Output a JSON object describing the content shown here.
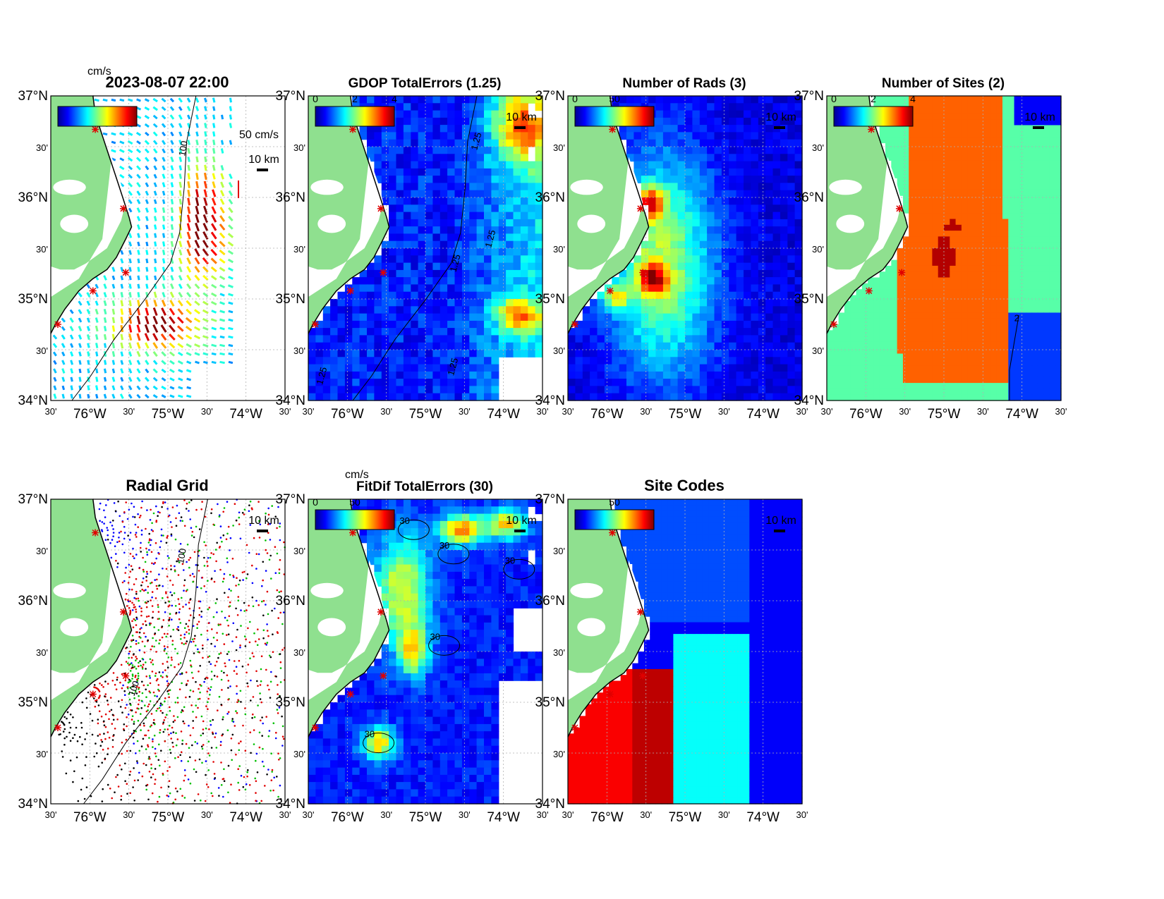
{
  "figure": {
    "timestamp": "2023-08-07 22:00",
    "colors": {
      "land": "#8fe08f",
      "coast": "#000000",
      "site_marker": "#e00000",
      "axis": "#000000",
      "grid": "#b0b0b0"
    }
  },
  "chart_data": [
    {
      "id": "currents",
      "type": "heatmap",
      "title": "2023-08-07 22:00",
      "colorbar": {
        "label": "cm/s",
        "ticks": []
      },
      "scale_label": "50 cm/s",
      "distance_label": "10 km",
      "contour_label": "100",
      "ylabel_ticks": [
        "37°N",
        "30'",
        "36°N",
        "30'",
        "35°N",
        "30'",
        "34°N"
      ],
      "xlabel_ticks": [
        "30'",
        "76°W",
        "30'",
        "75°W",
        "30'",
        "74°W",
        "30'"
      ],
      "lat_range": [
        34,
        37
      ],
      "lon_range": [
        -76.5,
        -74
      ]
    },
    {
      "id": "gdop",
      "type": "heatmap",
      "title": "GDOP TotalErrors (1.25)",
      "colorbar": {
        "label": "",
        "ticks": [
          "0",
          "2",
          "4"
        ],
        "range": [
          0,
          4
        ]
      },
      "distance_label": "10 km",
      "contour_level": 1.25,
      "contour_labels": [
        "1.25",
        "1.25",
        "1.25",
        "1.25",
        "1.25"
      ],
      "ylabel_ticks": [
        "37°N",
        "30'",
        "36°N",
        "30'",
        "35°N",
        "30'",
        "34°N"
      ],
      "xlabel_ticks": [
        "30'",
        "76°W",
        "30'",
        "75°W",
        "30'",
        "74°W",
        "30'"
      ]
    },
    {
      "id": "rads",
      "type": "heatmap",
      "title": "Number of Rads (3)",
      "colorbar": {
        "label": "",
        "ticks": [
          "0",
          "50"
        ],
        "range": [
          0,
          100
        ]
      },
      "distance_label": "10 km",
      "ylabel_ticks": [
        "37°N",
        "30'",
        "36°N",
        "30'",
        "35°N",
        "30'",
        "34°N"
      ],
      "xlabel_ticks": [
        "30'",
        "76°W",
        "30'",
        "75°W",
        "30'",
        "74°W",
        "30'"
      ]
    },
    {
      "id": "sites",
      "type": "heatmap",
      "title": "Number of Sites (2)",
      "colorbar": {
        "label": "",
        "ticks": [
          "0",
          "2",
          "4"
        ],
        "range": [
          0,
          4
        ]
      },
      "distance_label": "10 km",
      "contour_level": 2,
      "ylabel_ticks": [
        "37°N",
        "30'",
        "36°N",
        "30'",
        "35°N",
        "30'",
        "34°N"
      ],
      "xlabel_ticks": [
        "30'",
        "76°W",
        "30'",
        "75°W",
        "30'",
        "74°W",
        "30'"
      ]
    },
    {
      "id": "radial",
      "type": "scatter",
      "title": "Radial Grid",
      "distance_label": "10 km",
      "contour_labels": [
        "100",
        "100"
      ],
      "ylabel_ticks": [
        "37°N",
        "30'",
        "36°N",
        "30'",
        "35°N",
        "30'",
        "34°N"
      ],
      "xlabel_ticks": [
        "30'",
        "76°W",
        "30'",
        "75°W",
        "30'",
        "74°W",
        "30'"
      ]
    },
    {
      "id": "fitdif",
      "type": "heatmap",
      "title": "FitDif TotalErrors (30)",
      "colorbar": {
        "label": "cm/s",
        "ticks": [
          "0",
          "50"
        ],
        "range": [
          0,
          100
        ]
      },
      "distance_label": "10 km",
      "contour_level": 30,
      "ylabel_ticks": [
        "37°N",
        "30'",
        "36°N",
        "30'",
        "35°N",
        "30'",
        "34°N"
      ],
      "xlabel_ticks": [
        "30'",
        "76°W",
        "30'",
        "75°W",
        "30'",
        "74°W",
        "30'"
      ]
    },
    {
      "id": "codes",
      "type": "heatmap",
      "title": "Site Codes",
      "colorbar": {
        "label": "",
        "ticks": [
          "50"
        ],
        "range": [
          0,
          100
        ]
      },
      "distance_label": "10 km",
      "ylabel_ticks": [
        "37°N",
        "30'",
        "36°N",
        "30'",
        "35°N",
        "30'",
        "34°N"
      ],
      "xlabel_ticks": [
        "30'",
        "76°W",
        "30'",
        "75°W",
        "30'",
        "74°W",
        "30'"
      ]
    }
  ]
}
